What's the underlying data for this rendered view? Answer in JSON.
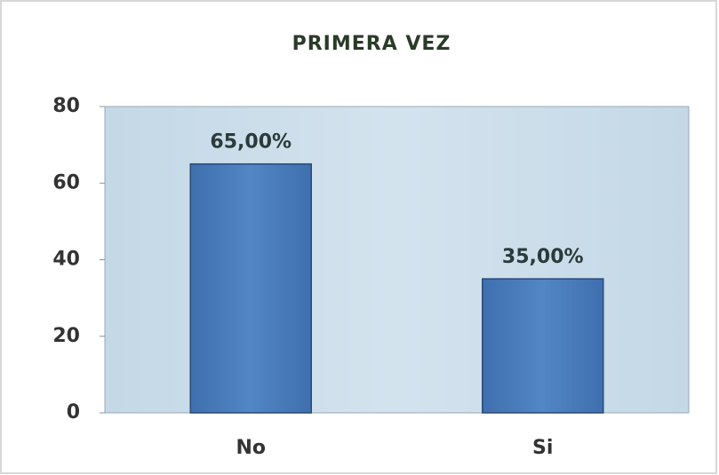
{
  "chart_data": {
    "type": "bar",
    "title": "PRIMERA VEZ",
    "categories": [
      "No",
      "Si"
    ],
    "values": [
      65,
      35
    ],
    "value_labels": [
      "65,00%",
      "35,00%"
    ],
    "color": "#4a7ebb",
    "ylim": [
      0,
      80
    ],
    "yticks": [
      0,
      20,
      40,
      60,
      80
    ],
    "grid": false
  }
}
